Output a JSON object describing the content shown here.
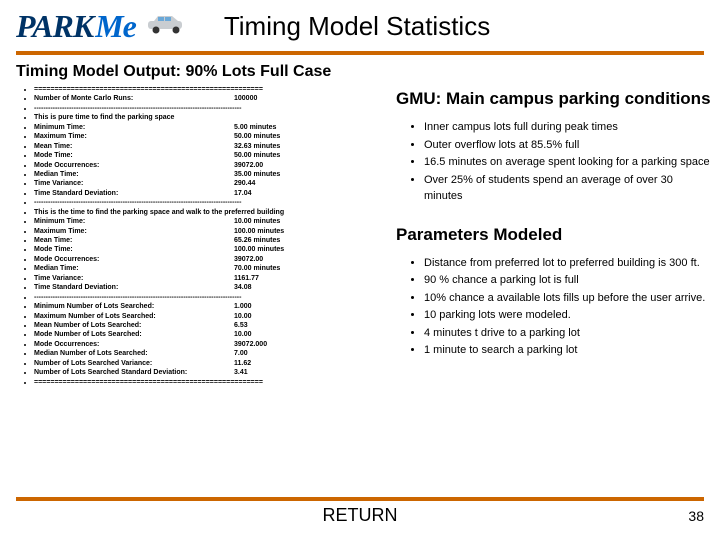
{
  "logo": {
    "park": "PARK",
    "me": "Me"
  },
  "title": "Timing Model Statistics",
  "subtitle": "Timing Model Output: 90% Lots Full Case",
  "colors": {
    "hr": "#cc6600",
    "logo_dark": "#003366",
    "logo_light": "#0066cc"
  },
  "stats": {
    "sep_eq": "========================================================",
    "monte_label": "Number of Monte Carlo Runs:",
    "monte_val": "100000",
    "sep_dash": "-----------------------------------------------------------------------------------------",
    "section1_title": "This is pure time to find the parking space",
    "s1": [
      {
        "l": "Minimum Time:",
        "v": "5.00 minutes"
      },
      {
        "l": "Maximum Time:",
        "v": "50.00 minutes"
      },
      {
        "l": "Mean Time:",
        "v": "32.63 minutes"
      },
      {
        "l": "Mode Time:",
        "v": "50.00 minutes"
      },
      {
        "l": "Mode Occurrences:",
        "v": "39072.00"
      },
      {
        "l": "Median Time:",
        "v": "35.00 minutes"
      },
      {
        "l": "Time Variance:",
        "v": "290.44"
      },
      {
        "l": "Time Standard Deviation:",
        "v": "17.04"
      }
    ],
    "section2_title": "This is the time to find the parking space and walk to the preferred building",
    "s2": [
      {
        "l": "Minimum Time:",
        "v": "10.00 minutes"
      },
      {
        "l": "Maximum Time:",
        "v": "100.00 minutes"
      },
      {
        "l": "Mean Time:",
        "v": "65.26 minutes"
      },
      {
        "l": "Mode Time:",
        "v": "100.00 minutes"
      },
      {
        "l": "Mode Occurrences:",
        "v": "39072.00"
      },
      {
        "l": "Median Time:",
        "v": "70.00 minutes"
      },
      {
        "l": "Time Variance:",
        "v": "1161.77"
      },
      {
        "l": "Time Standard Deviation:",
        "v": "34.08"
      }
    ],
    "s3": [
      {
        "l": "Minimum Number of Lots Searched:",
        "v": "1.000"
      },
      {
        "l": "Maximum Number of Lots Searched:",
        "v": "10.00"
      },
      {
        "l": "Mean Number of Lots Searched:",
        "v": "6.53"
      },
      {
        "l": "Mode Number of Lots Searched:",
        "v": "10.00"
      },
      {
        "l": "Mode Occurrences:",
        "v": "39072.000"
      },
      {
        "l": "Median Number of Lots Searched:",
        "v": "7.00"
      },
      {
        "l": "Number of Lots Searched Variance:",
        "v": "11.62"
      },
      {
        "l": "Number of Lots Searched Standard Deviation:",
        "v": "3.41"
      }
    ]
  },
  "right": {
    "heading1": "GMU: Main campus parking conditions",
    "list1": [
      "Inner campus lots full during peak times",
      "Outer overflow lots at 85.5% full",
      "16.5 minutes on average spent looking for a parking space",
      "Over 25% of students spend an average of over 30 minutes"
    ],
    "heading2": "Parameters Modeled",
    "list2": [
      "Distance from preferred lot to preferred building is 300 ft.",
      "90 % chance a parking lot is full",
      "10% chance a available lots fills up before the user arrive.",
      "10 parking lots were modeled.",
      "4 minutes t drive to a parking lot",
      "1 minute to search a parking lot"
    ]
  },
  "footer": {
    "return": "RETURN",
    "page": "38"
  }
}
